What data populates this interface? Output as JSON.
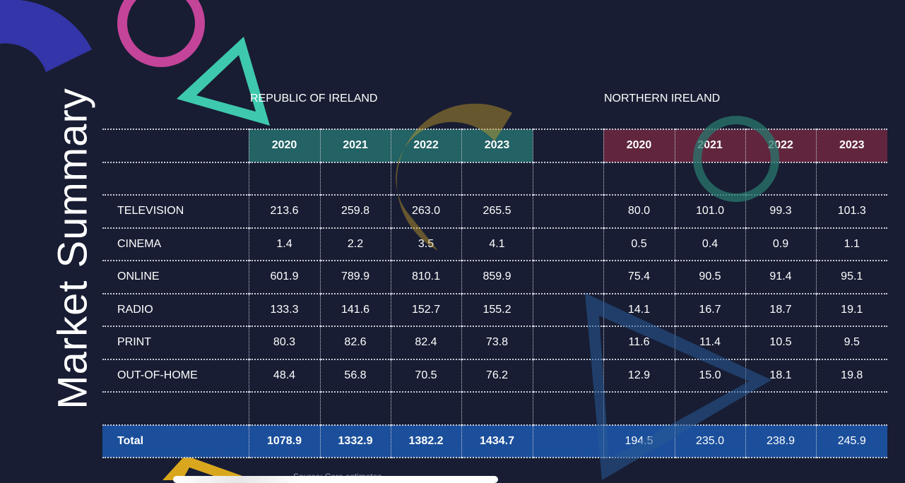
{
  "title": "Market Summary",
  "regions": {
    "roi": "REPUBLIC OF IRELAND",
    "ni": "NORTHERN IRELAND"
  },
  "years": [
    "2020",
    "2021",
    "2022",
    "2023"
  ],
  "rows": [
    {
      "label": "TELEVISION",
      "roi": [
        "213.6",
        "259.8",
        "263.0",
        "265.5"
      ],
      "ni": [
        "80.0",
        "101.0",
        "99.3",
        "101.3"
      ]
    },
    {
      "label": "CINEMA",
      "roi": [
        "1.4",
        "2.2",
        "3.5",
        "4.1"
      ],
      "ni": [
        "0.5",
        "0.4",
        "0.9",
        "1.1"
      ]
    },
    {
      "label": "ONLINE",
      "roi": [
        "601.9",
        "789.9",
        "810.1",
        "859.9"
      ],
      "ni": [
        "75.4",
        "90.5",
        "91.4",
        "95.1"
      ]
    },
    {
      "label": "RADIO",
      "roi": [
        "133.3",
        "141.6",
        "152.7",
        "155.2"
      ],
      "ni": [
        "14.1",
        "16.7",
        "18.7",
        "19.1"
      ]
    },
    {
      "label": "PRINT",
      "roi": [
        "80.3",
        "82.6",
        "82.4",
        "73.8"
      ],
      "ni": [
        "11.6",
        "11.4",
        "10.5",
        "9.5"
      ]
    },
    {
      "label": "OUT-OF-HOME",
      "roi": [
        "48.4",
        "56.8",
        "70.5",
        "76.2"
      ],
      "ni": [
        "12.9",
        "15.0",
        "18.1",
        "19.8"
      ]
    }
  ],
  "total": {
    "label": "Total",
    "roi": [
      "1078.9",
      "1332.9",
      "1382.2",
      "1434.7"
    ],
    "ni": [
      "194.5",
      "235.0",
      "238.9",
      "245.9"
    ]
  },
  "source": "Source: Core estimates",
  "colors": {
    "background": "#181d33",
    "roi_header": "#266e6e",
    "ni_header": "#6e2841",
    "total": "#1c54a4"
  }
}
